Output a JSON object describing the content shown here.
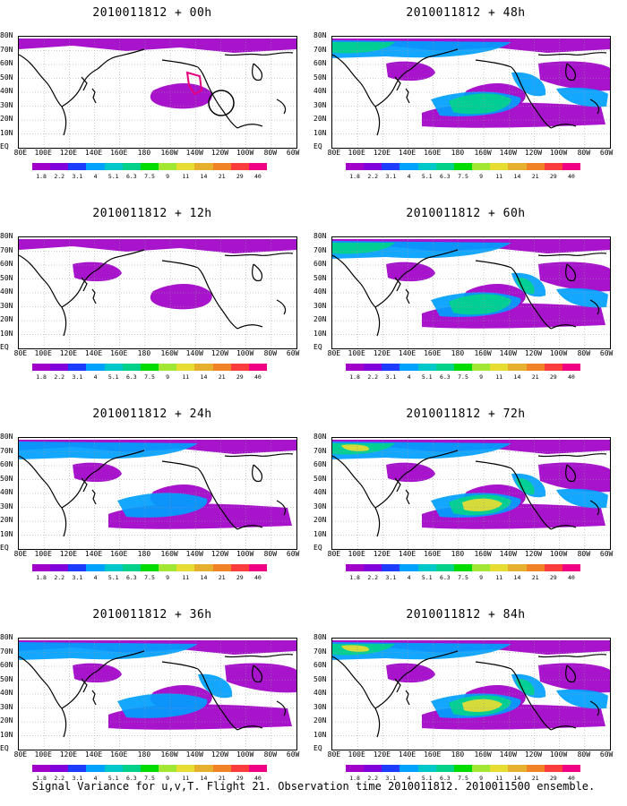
{
  "caption": "Signal Variance for u,v,T. Flight 21. Observation time 2010011812. 2010011500 ensemble.",
  "lat_labels": [
    "80N",
    "70N",
    "60N",
    "50N",
    "40N",
    "30N",
    "20N",
    "10N",
    "EQ"
  ],
  "lon_labels": [
    "80E",
    "100E",
    "120E",
    "140E",
    "160E",
    "180",
    "160W",
    "140W",
    "120W",
    "100W",
    "80W",
    "60W"
  ],
  "colorbar": {
    "levels": [
      "1.8",
      "2.2",
      "3.1",
      "4",
      "5.1",
      "6.3",
      "7.5",
      "9",
      "11",
      "14",
      "21",
      "29",
      "40"
    ],
    "colors": [
      "#a000c8",
      "#8200dc",
      "#1e3cff",
      "#00a0ff",
      "#00c8c8",
      "#00d28c",
      "#00dc00",
      "#a0e632",
      "#e6dc32",
      "#e6af2d",
      "#f08228",
      "#fa3c3c",
      "#f00082"
    ]
  },
  "panels": [
    {
      "title": "2010011812 + 00h",
      "level": 0
    },
    {
      "title": "2010011812 + 48h",
      "level": 4
    },
    {
      "title": "2010011812 + 12h",
      "level": 1
    },
    {
      "title": "2010011812 + 60h",
      "level": 5
    },
    {
      "title": "2010011812 + 24h",
      "level": 2
    },
    {
      "title": "2010011812 + 72h",
      "level": 6
    },
    {
      "title": "2010011812 + 36h",
      "level": 3
    },
    {
      "title": "2010011812 + 84h",
      "level": 7
    }
  ],
  "chart_data": {
    "type": "heatmap",
    "quantity": "Signal variance (u,v,T)",
    "map_region": {
      "lon_range": [
        "80E",
        "60W"
      ],
      "lat_range": [
        "EQ",
        "80N"
      ]
    },
    "lead_times_hours": [
      0,
      12,
      24,
      36,
      48,
      60,
      72,
      84
    ],
    "contour_levels": [
      1.8,
      2.2,
      3.1,
      4,
      5.1,
      6.3,
      7.5,
      9,
      11,
      14,
      21,
      29,
      40
    ]
  }
}
